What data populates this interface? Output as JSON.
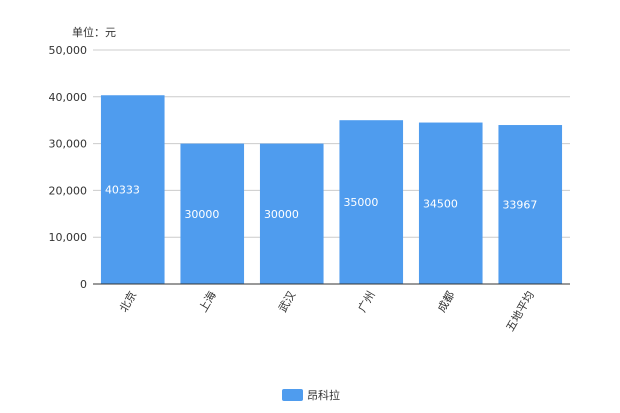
{
  "chart_data": {
    "type": "bar",
    "unit_label": "单位：元",
    "categories": [
      "北京",
      "上海",
      "武汉",
      "广州",
      "成都",
      "五地平均"
    ],
    "series": [
      {
        "name": "昂科拉",
        "values": [
          40333,
          30000,
          30000,
          35000,
          34500,
          33967
        ]
      }
    ],
    "data_labels": [
      "40333",
      "30000",
      "30000",
      "35000",
      "34500",
      "33967"
    ],
    "y_ticks": [
      "0",
      "10,000",
      "20,000",
      "30,000",
      "40,000",
      "50,000"
    ],
    "ylim": [
      0,
      50000
    ],
    "grid": true,
    "legend_position": "bottom-center",
    "colors": {
      "bar": "#4f9cee",
      "grid": "#cccccc",
      "axis": "#333333"
    }
  }
}
